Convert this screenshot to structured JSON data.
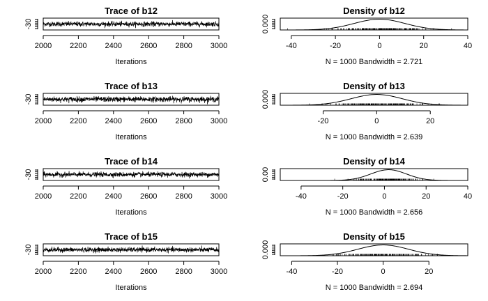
{
  "chart_data": [
    {
      "type": "line",
      "title": "Trace of b12",
      "xlabel": "Iterations",
      "x_range": [
        2000,
        3000
      ],
      "x_ticks": [
        "2000",
        "2200",
        "2400",
        "2600",
        "2800",
        "3000"
      ],
      "y_ticks": [
        "-30"
      ],
      "y_range": [
        -38,
        -22
      ],
      "series_center": -30,
      "series_spread": 1.6
    },
    {
      "type": "area",
      "title": "Density of b12",
      "subtitle": "N = 1000   Bandwidth = 2.721",
      "x_range": [
        -45,
        40
      ],
      "x_ticks": [
        "-40",
        "-20",
        "0",
        "20",
        "40"
      ],
      "y_ticks": [
        "0.000"
      ],
      "y_range": [
        0,
        0.022
      ],
      "density": {
        "mean": 0,
        "sd": 11.5,
        "peak": 0.02
      }
    },
    {
      "type": "line",
      "title": "Trace of b13",
      "xlabel": "Iterations",
      "x_range": [
        2000,
        3000
      ],
      "x_ticks": [
        "2000",
        "2200",
        "2400",
        "2600",
        "2800",
        "3000"
      ],
      "y_ticks": [
        "-30"
      ],
      "y_range": [
        -38,
        -22
      ],
      "series_center": -30,
      "series_spread": 1.8
    },
    {
      "type": "area",
      "title": "Density of b13",
      "subtitle": "N = 1000   Bandwidth = 2.639",
      "x_range": [
        -36,
        34
      ],
      "x_ticks": [
        "-20",
        "0",
        "20"
      ],
      "y_ticks": [
        "0.000"
      ],
      "y_range": [
        0,
        0.022
      ],
      "density": {
        "mean": 0,
        "sd": 9.5,
        "peak": 0.02
      }
    },
    {
      "type": "line",
      "title": "Trace of b14",
      "xlabel": "Iterations",
      "x_range": [
        2000,
        3000
      ],
      "x_ticks": [
        "2000",
        "2200",
        "2400",
        "2600",
        "2800",
        "3000"
      ],
      "y_ticks": [
        "-30"
      ],
      "y_range": [
        -38,
        -22
      ],
      "series_center": -30,
      "series_spread": 1.6
    },
    {
      "type": "area",
      "title": "Density of b14",
      "subtitle": "N = 1000   Bandwidth = 2.656",
      "x_range": [
        -50,
        40
      ],
      "x_ticks": [
        "-40",
        "-20",
        "0",
        "20",
        "40"
      ],
      "y_ticks": [
        "0.00"
      ],
      "y_range": [
        0,
        0.022
      ],
      "density": {
        "mean": 2,
        "sd": 8.5,
        "peak": 0.02
      }
    },
    {
      "type": "line",
      "title": "Trace of b15",
      "xlabel": "Iterations",
      "x_range": [
        2000,
        3000
      ],
      "x_ticks": [
        "2000",
        "2200",
        "2400",
        "2600",
        "2800",
        "3000"
      ],
      "y_ticks": [
        "-30"
      ],
      "y_range": [
        -38,
        -22
      ],
      "series_center": -30,
      "series_spread": 1.6
    },
    {
      "type": "area",
      "title": "Density of b15",
      "subtitle": "N = 1000   Bandwidth = 2.694",
      "x_range": [
        -45,
        37
      ],
      "x_ticks": [
        "-40",
        "-20",
        "0",
        "20"
      ],
      "y_ticks": [
        "0.000"
      ],
      "y_range": [
        0,
        0.022
      ],
      "density": {
        "mean": 0,
        "sd": 11,
        "peak": 0.02
      }
    }
  ]
}
